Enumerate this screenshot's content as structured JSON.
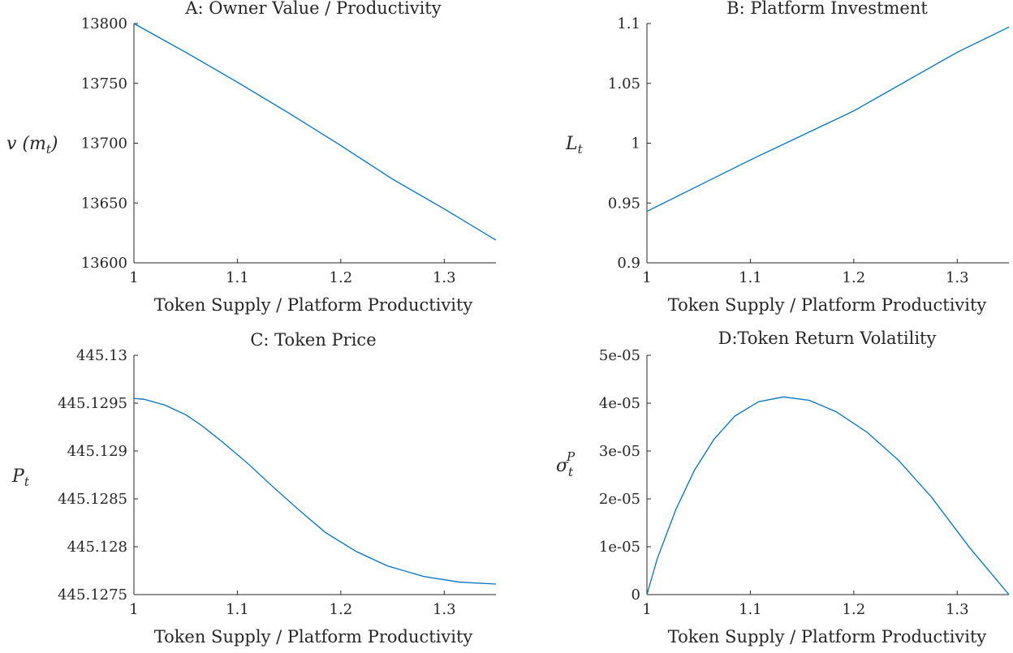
{
  "colors": {
    "series": "#0072BD",
    "axis": "#262626"
  },
  "chart_data": [
    {
      "type": "line",
      "title": "A: Owner Value / Productivity",
      "xlabel": "Token Supply / Platform Productivity",
      "ylabel": "v (m_t)",
      "xlim": [
        1,
        1.35
      ],
      "ylim": [
        13600,
        13800
      ],
      "xticks": [
        1,
        1.1,
        1.2,
        1.3
      ],
      "xtick_labels": [
        "1",
        "1.1",
        "1.2",
        "1.3"
      ],
      "yticks": [
        13600,
        13650,
        13700,
        13750,
        13800
      ],
      "ytick_labels": [
        "13600",
        "13650",
        "13700",
        "13750",
        "13800"
      ],
      "grid": false,
      "series": [
        {
          "x": [
            1.0,
            1.05,
            1.1,
            1.15,
            1.2,
            1.25,
            1.3,
            1.35
          ],
          "y": [
            13800,
            13776,
            13751,
            13725,
            13698,
            13670,
            13645,
            13619
          ]
        }
      ]
    },
    {
      "type": "line",
      "title": "B: Platform Investment",
      "xlabel": "Token Supply / Platform Productivity",
      "ylabel": "L_t",
      "xlim": [
        1,
        1.35
      ],
      "ylim": [
        0.9,
        1.1
      ],
      "xticks": [
        1,
        1.1,
        1.2,
        1.3
      ],
      "xtick_labels": [
        "1",
        "1.1",
        "1.2",
        "1.3"
      ],
      "yticks": [
        0.9,
        0.95,
        1.0,
        1.05,
        1.1
      ],
      "ytick_labels": [
        "0.9",
        "0.95",
        "1",
        "1.05",
        "1.1"
      ],
      "grid": false,
      "series": [
        {
          "x": [
            1.0,
            1.1,
            1.2,
            1.3,
            1.35
          ],
          "y": [
            0.943,
            0.986,
            1.027,
            1.076,
            1.097
          ]
        }
      ]
    },
    {
      "type": "line",
      "title": "C: Token Price",
      "xlabel": "Token Supply / Platform Productivity",
      "ylabel": "P_t",
      "xlim": [
        1,
        1.35
      ],
      "ylim": [
        445.1275,
        445.13
      ],
      "xticks": [
        1,
        1.1,
        1.2,
        1.3
      ],
      "xtick_labels": [
        "1",
        "1.1",
        "1.2",
        "1.3"
      ],
      "yticks": [
        445.1275,
        445.128,
        445.1285,
        445.129,
        445.1295,
        445.13
      ],
      "ytick_labels": [
        "445.1275",
        "445.128",
        "445.1285",
        "445.129",
        "445.1295",
        "445.13"
      ],
      "grid": false,
      "series": [
        {
          "x": [
            1.0,
            1.01,
            1.03,
            1.05,
            1.065,
            1.085,
            1.11,
            1.135,
            1.16,
            1.185,
            1.215,
            1.245,
            1.28,
            1.315,
            1.35
          ],
          "y": [
            445.12955,
            445.12954,
            445.12948,
            445.12938,
            445.12927,
            445.1291,
            445.12887,
            445.12862,
            445.12838,
            445.12815,
            445.12795,
            445.1278,
            445.12769,
            445.12763,
            445.12761
          ]
        }
      ]
    },
    {
      "type": "line",
      "title": "D:Token Return Volatility",
      "xlabel": "Token Supply / Platform Productivity",
      "ylabel": "σ_t^P",
      "xlim": [
        1,
        1.35
      ],
      "ylim": [
        0,
        5e-05
      ],
      "xticks": [
        1,
        1.1,
        1.2,
        1.3
      ],
      "xtick_labels": [
        "1",
        "1.1",
        "1.2",
        "1.3"
      ],
      "yticks": [
        0,
        1e-05,
        2e-05,
        3e-05,
        4e-05,
        5e-05
      ],
      "ytick_labels": [
        "0",
        "1e-05",
        "2e-05",
        "3e-05",
        "4e-05",
        "5e-05"
      ],
      "grid": false,
      "series": [
        {
          "x": [
            1.0,
            1.01,
            1.028,
            1.046,
            1.065,
            1.085,
            1.108,
            1.132,
            1.157,
            1.183,
            1.213,
            1.243,
            1.275,
            1.312,
            1.35
          ],
          "y": [
            0,
            7.5e-06,
            1.78e-05,
            2.6e-05,
            3.25e-05,
            3.73e-05,
            4.03e-05,
            4.13e-05,
            4.06e-05,
            3.82e-05,
            3.39e-05,
            2.81e-05,
            2.04e-05,
            9.8e-06,
            0
          ]
        }
      ]
    }
  ]
}
